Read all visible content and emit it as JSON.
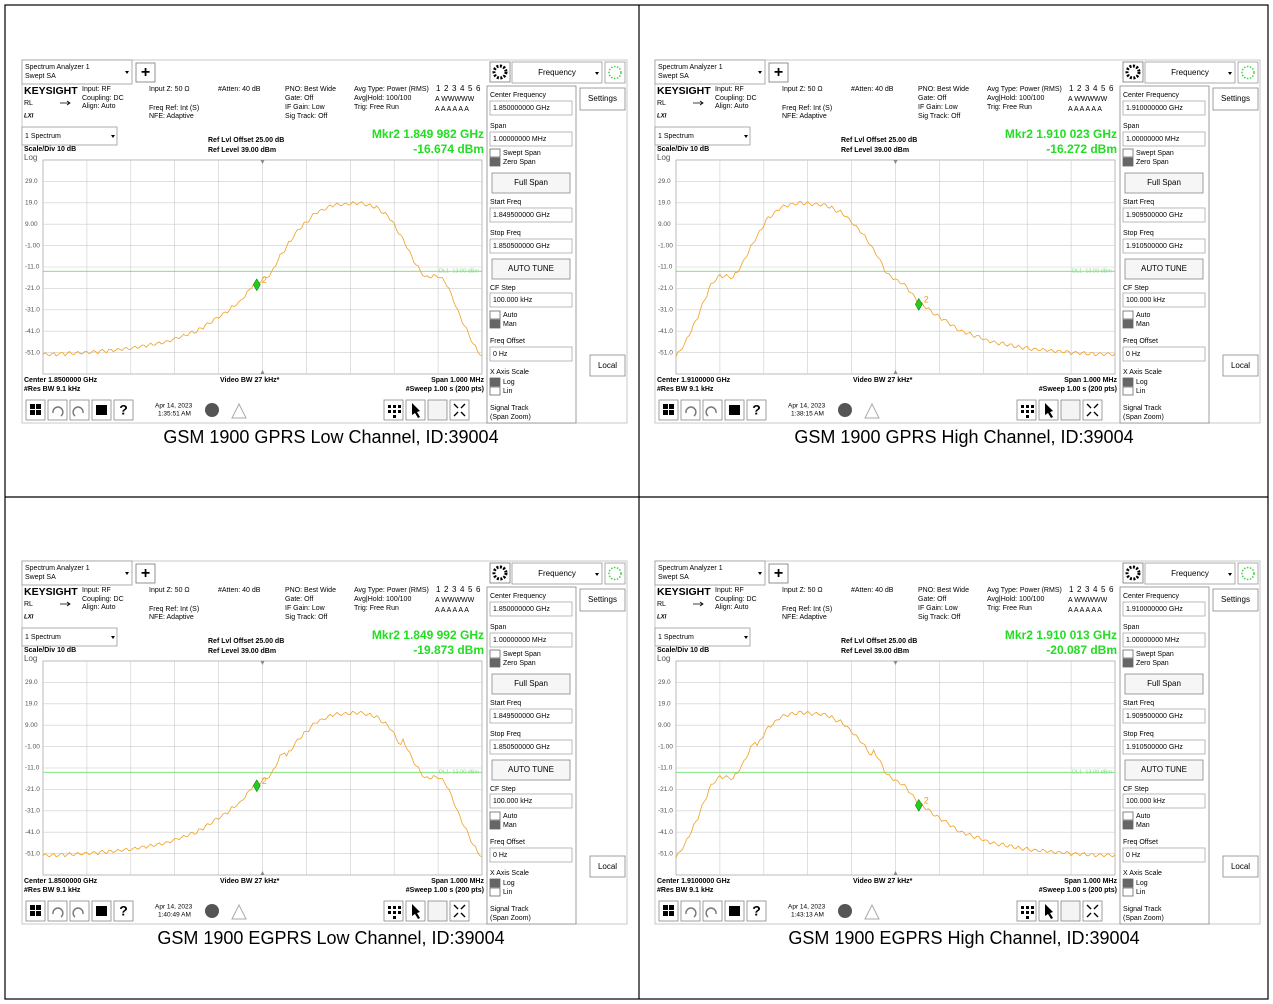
{
  "common": {
    "app_name": "Spectrum Analyzer 1",
    "app_mode": "Swept SA",
    "add": "+",
    "brand": "KEYSIGHT",
    "input": "Input: RF",
    "coupling": "Coupling: DC",
    "align": "Align: Auto",
    "rl": "RL",
    "lxi": "LXI",
    "input_z": "Input Z: 50 Ω",
    "freq_ref": "Freq Ref: Int (S)",
    "nfe": "NFE: Adaptive",
    "atten": "#Atten: 40 dB",
    "pno": "PNO: Best Wide",
    "gate": "Gate: Off",
    "if_gain": "IF Gain: Low",
    "sig_track": "Sig Track: Off",
    "avg_type": "Avg Type: Power (RMS)",
    "avg_hold": "Avg|Hold: 100/100",
    "trig": "Trig: Free Run",
    "trace_numbers": [
      "1",
      "2",
      "3",
      "4",
      "5",
      "6"
    ],
    "trace_types": "A WWWWW",
    "trace_dets": "A A A A A A",
    "menu_title": "Frequency",
    "settings": "Settings",
    "window": "1 Spectrum",
    "scale": "Scale/Div 10 dB",
    "log": "Log",
    "ref_offset": "Ref Lvl Offset 25.00 dB",
    "ref_level": "Ref Level 39.00 dBm",
    "y_labels": [
      "29.0",
      "19.0",
      "9.00",
      "-1.00",
      "-11.0",
      "-21.0",
      "-31.0",
      "-41.0",
      "-51.0"
    ],
    "display_line": "DL1 -13.00 dBm",
    "marker_id": "2",
    "video_bw": "Video BW 27 kHz*",
    "span_label": "Span 1.000 MHz",
    "res_bw": "#Res BW 9.1 kHz",
    "sweep": "#Sweep 1.00 s (200 pts)",
    "menu": {
      "center_frequency": "Center Frequency",
      "span": "Span",
      "span_value": "1.00000000 MHz",
      "swept_span": "Swept Span",
      "zero_span": "Zero Span",
      "full_span": "Full Span",
      "start_freq": "Start Freq",
      "stop_freq": "Stop Freq",
      "auto_tune": "AUTO TUNE",
      "cf_step": "CF Step",
      "cf_step_value": "100.000 kHz",
      "auto": "Auto",
      "man": "Man",
      "freq_offset": "Freq Offset",
      "freq_offset_value": "0 Hz",
      "x_axis_scale": "X Axis Scale",
      "log": "Log",
      "lin": "Lin",
      "signal_track": "Signal Track",
      "span_zoom": "(Span Zoom)"
    },
    "local": "Local",
    "help": "?"
  },
  "panels": [
    {
      "center_freq": "1.850000000 GHz",
      "start_freq": "1.849500000 GHz",
      "stop_freq": "1.850500000 GHz",
      "center_label": "Center 1.8500000 GHz",
      "marker": "Mkr2 1.849 982 GHz",
      "marker_level": "-16.674 dBm",
      "date": "Apr 14, 2023",
      "time": "1:35:51 AM",
      "caption": "GSM 1900 GPRS Low Channel, ID:39004"
    },
    {
      "center_freq": "1.910000000 GHz",
      "start_freq": "1.909500000 GHz",
      "stop_freq": "1.910500000 GHz",
      "center_label": "Center 1.9100000 GHz",
      "marker": "Mkr2 1.910 023 GHz",
      "marker_level": "-16.272 dBm",
      "date": "Apr 14, 2023",
      "time": "1:38:15 AM",
      "caption": "GSM 1900 GPRS High Channel, ID:39004"
    },
    {
      "center_freq": "1.850000000 GHz",
      "start_freq": "1.849500000 GHz",
      "stop_freq": "1.850500000 GHz",
      "center_label": "Center 1.8500000 GHz",
      "marker": "Mkr2 1.849 992 GHz",
      "marker_level": "-19.873 dBm",
      "date": "Apr 14, 2023",
      "time": "1:40:49 AM",
      "caption": "GSM 1900 EGPRS Low Channel, ID:39004"
    },
    {
      "center_freq": "1.910000000 GHz",
      "start_freq": "1.909500000 GHz",
      "stop_freq": "1.910500000 GHz",
      "center_label": "Center 1.9100000 GHz",
      "marker": "Mkr2 1.910 013 GHz",
      "marker_level": "-20.087 dBm",
      "date": "Apr 14, 2023",
      "time": "1:43:13 AM",
      "caption": "GSM 1900 EGPRS High Channel, ID:39004"
    }
  ]
}
